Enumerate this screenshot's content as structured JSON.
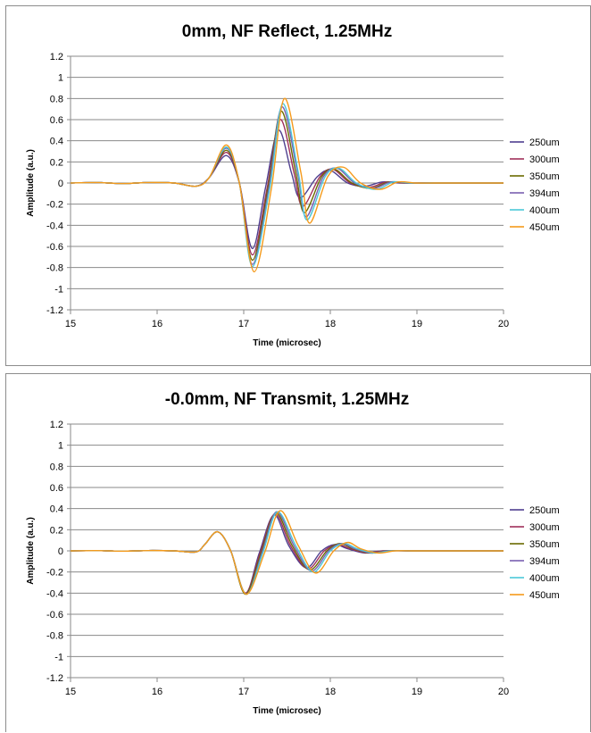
{
  "chart_data": [
    {
      "type": "line",
      "title": "0mm, NF Reflect, 1.25MHz",
      "xlabel": "Time (microsec)",
      "ylabel": "Amplitude (a.u.)",
      "xlim": [
        15,
        20
      ],
      "ylim": [
        -1.2,
        1.2
      ],
      "x_ticks": [
        "15",
        "16",
        "17",
        "18",
        "19",
        "20"
      ],
      "y_ticks": [
        "1.2",
        "1",
        "0.8",
        "0.6",
        "0.4",
        "0.2",
        "0",
        "-0.2",
        "-0.4",
        "-0.6",
        "-0.8",
        "-1",
        "-1.2"
      ],
      "grid": "horizontal",
      "legend_position": "right",
      "series": [
        {
          "name": "250um",
          "color": "#4f3f8f",
          "x": [
            15,
            15.3,
            15.6,
            15.9,
            16.2,
            16.45,
            16.6,
            16.8,
            16.95,
            17.1,
            17.25,
            17.4,
            17.55,
            17.65,
            17.85,
            18.0,
            18.2,
            18.4,
            18.6,
            18.8,
            19.0,
            19.5,
            20
          ],
          "y": [
            0,
            0.005,
            -0.005,
            0.005,
            0,
            -0.03,
            0.05,
            0.26,
            0.0,
            -0.62,
            -0.05,
            0.5,
            0.1,
            -0.14,
            0.06,
            0.12,
            0.0,
            -0.03,
            0.01,
            0.0,
            0,
            0,
            0
          ]
        },
        {
          "name": "300um",
          "color": "#a0305a",
          "x": [
            15,
            15.3,
            15.6,
            15.9,
            16.2,
            16.45,
            16.6,
            16.8,
            16.95,
            17.1,
            17.27,
            17.42,
            17.58,
            17.68,
            17.88,
            18.03,
            18.23,
            18.45,
            18.65,
            18.85,
            19.05,
            19.5,
            20
          ],
          "y": [
            0,
            0.005,
            -0.005,
            0.005,
            0,
            -0.03,
            0.05,
            0.29,
            0.0,
            -0.68,
            -0.05,
            0.6,
            0.1,
            -0.22,
            0.06,
            0.13,
            0.0,
            -0.04,
            0.01,
            0.0,
            0,
            0,
            0
          ]
        },
        {
          "name": "350um",
          "color": "#6b6b00",
          "x": [
            15,
            15.3,
            15.6,
            15.9,
            16.2,
            16.45,
            16.6,
            16.8,
            16.95,
            17.1,
            17.28,
            17.43,
            17.6,
            17.7,
            17.9,
            18.05,
            18.25,
            18.47,
            18.68,
            18.88,
            19.1,
            19.5,
            20
          ],
          "y": [
            0,
            0.005,
            -0.005,
            0.005,
            0,
            -0.03,
            0.05,
            0.31,
            0.0,
            -0.73,
            -0.05,
            0.68,
            0.1,
            -0.28,
            0.06,
            0.13,
            0.0,
            -0.05,
            0.01,
            0.0,
            0,
            0,
            0
          ]
        },
        {
          "name": "394um",
          "color": "#7a5fb0",
          "x": [
            15,
            15.3,
            15.6,
            15.9,
            16.2,
            16.45,
            16.6,
            16.8,
            16.95,
            17.1,
            17.29,
            17.44,
            17.62,
            17.72,
            17.92,
            18.08,
            18.28,
            18.5,
            18.7,
            18.9,
            19.12,
            19.5,
            20
          ],
          "y": [
            0,
            0.005,
            -0.005,
            0.005,
            0,
            -0.03,
            0.05,
            0.33,
            0.0,
            -0.77,
            -0.05,
            0.72,
            0.1,
            -0.32,
            0.06,
            0.14,
            0.0,
            -0.05,
            0.01,
            0.0,
            0,
            0,
            0
          ]
        },
        {
          "name": "400um",
          "color": "#4bc8d8",
          "x": [
            15,
            15.3,
            15.6,
            15.9,
            16.2,
            16.45,
            16.6,
            16.8,
            16.95,
            17.1,
            17.3,
            17.45,
            17.63,
            17.73,
            17.94,
            18.1,
            18.3,
            18.53,
            18.73,
            18.93,
            19.15,
            19.5,
            20
          ],
          "y": [
            0,
            0.005,
            -0.005,
            0.005,
            0,
            -0.03,
            0.05,
            0.34,
            0.0,
            -0.79,
            -0.05,
            0.75,
            0.1,
            -0.35,
            0.06,
            0.14,
            0.0,
            -0.06,
            0.01,
            0.0,
            0,
            0,
            0
          ]
        },
        {
          "name": "450um",
          "color": "#f59a1b",
          "x": [
            15,
            15.3,
            15.6,
            15.9,
            16.2,
            16.45,
            16.6,
            16.8,
            16.95,
            17.12,
            17.32,
            17.47,
            17.66,
            17.76,
            17.97,
            18.15,
            18.35,
            18.58,
            18.78,
            18.98,
            19.2,
            19.5,
            20
          ],
          "y": [
            0,
            0.005,
            -0.005,
            0.005,
            0,
            -0.03,
            0.05,
            0.36,
            0.0,
            -0.84,
            -0.05,
            0.8,
            0.1,
            -0.38,
            0.06,
            0.15,
            0.0,
            -0.06,
            0.01,
            0.0,
            0,
            0,
            0
          ]
        }
      ]
    },
    {
      "type": "line",
      "title": "-0.0mm, NF Transmit, 1.25MHz",
      "xlabel": "Time (microsec)",
      "ylabel": "Amplitude (a.u.)",
      "xlim": [
        15,
        20
      ],
      "ylim": [
        -1.2,
        1.2
      ],
      "x_ticks": [
        "15",
        "16",
        "17",
        "18",
        "19",
        "20"
      ],
      "y_ticks": [
        "1.2",
        "1",
        "0.8",
        "0.6",
        "0.4",
        "0.2",
        "0",
        "-0.2",
        "-0.4",
        "-0.6",
        "-0.8",
        "-1",
        "-1.2"
      ],
      "grid": "horizontal",
      "legend_position": "right",
      "series": [
        {
          "name": "250um",
          "color": "#4f3f8f",
          "x": [
            15,
            15.3,
            15.6,
            15.9,
            16.2,
            16.45,
            16.55,
            16.7,
            16.85,
            17.02,
            17.18,
            17.35,
            17.52,
            17.72,
            17.9,
            18.05,
            18.2,
            18.4,
            18.6,
            19.0,
            19.5,
            20
          ],
          "y": [
            0,
            0.003,
            -0.003,
            0.003,
            0,
            -0.01,
            0.06,
            0.18,
            0.0,
            -0.4,
            -0.02,
            0.34,
            0.05,
            -0.16,
            0.0,
            0.06,
            0.02,
            -0.02,
            0.0,
            0,
            0,
            0
          ]
        },
        {
          "name": "300um",
          "color": "#a0305a",
          "x": [
            15,
            15.3,
            15.6,
            15.9,
            16.2,
            16.45,
            16.55,
            16.7,
            16.85,
            17.02,
            17.19,
            17.36,
            17.54,
            17.74,
            17.93,
            18.08,
            18.23,
            18.43,
            18.63,
            19.0,
            19.5,
            20
          ],
          "y": [
            0,
            0.003,
            -0.003,
            0.003,
            0,
            -0.01,
            0.06,
            0.18,
            0.0,
            -0.4,
            -0.02,
            0.35,
            0.05,
            -0.17,
            0.0,
            0.06,
            0.02,
            -0.02,
            0.0,
            0,
            0,
            0
          ]
        },
        {
          "name": "350um",
          "color": "#6b6b00",
          "x": [
            15,
            15.3,
            15.6,
            15.9,
            16.2,
            16.45,
            16.55,
            16.7,
            16.85,
            17.02,
            17.2,
            17.37,
            17.56,
            17.76,
            17.96,
            18.11,
            18.26,
            18.46,
            18.66,
            19.0,
            19.5,
            20
          ],
          "y": [
            0,
            0.003,
            -0.003,
            0.003,
            0,
            -0.01,
            0.06,
            0.18,
            0.0,
            -0.41,
            -0.02,
            0.36,
            0.05,
            -0.18,
            0.0,
            0.07,
            0.02,
            -0.02,
            0.0,
            0,
            0,
            0
          ]
        },
        {
          "name": "394um",
          "color": "#7a5fb0",
          "x": [
            15,
            15.3,
            15.6,
            15.9,
            16.2,
            16.45,
            16.55,
            16.7,
            16.85,
            17.03,
            17.21,
            17.38,
            17.58,
            17.78,
            17.98,
            18.13,
            18.28,
            18.48,
            18.68,
            19.0,
            19.5,
            20
          ],
          "y": [
            0,
            0.003,
            -0.003,
            0.003,
            0,
            -0.01,
            0.06,
            0.18,
            0.0,
            -0.41,
            -0.02,
            0.37,
            0.05,
            -0.19,
            0.0,
            0.07,
            0.02,
            -0.02,
            0.0,
            0,
            0,
            0
          ]
        },
        {
          "name": "400um",
          "color": "#4bc8d8",
          "x": [
            15,
            15.3,
            15.6,
            15.9,
            16.2,
            16.45,
            16.55,
            16.7,
            16.85,
            17.03,
            17.22,
            17.39,
            17.6,
            17.8,
            18.0,
            18.16,
            18.31,
            18.51,
            18.71,
            19.0,
            19.5,
            20
          ],
          "y": [
            0,
            0.003,
            -0.003,
            0.003,
            0,
            -0.01,
            0.06,
            0.18,
            0.0,
            -0.41,
            -0.02,
            0.37,
            0.05,
            -0.2,
            0.0,
            0.07,
            0.02,
            -0.02,
            0.0,
            0,
            0,
            0
          ]
        },
        {
          "name": "450um",
          "color": "#f59a1b",
          "x": [
            15,
            15.3,
            15.6,
            15.9,
            16.2,
            16.45,
            16.55,
            16.7,
            16.85,
            17.03,
            17.24,
            17.42,
            17.63,
            17.83,
            18.04,
            18.2,
            18.35,
            18.55,
            18.75,
            19.0,
            19.5,
            20
          ],
          "y": [
            0,
            0.003,
            -0.003,
            0.003,
            0,
            -0.01,
            0.06,
            0.18,
            0.0,
            -0.41,
            -0.02,
            0.38,
            0.05,
            -0.21,
            0.0,
            0.08,
            0.02,
            -0.02,
            0.0,
            0,
            0,
            0
          ]
        }
      ]
    }
  ]
}
